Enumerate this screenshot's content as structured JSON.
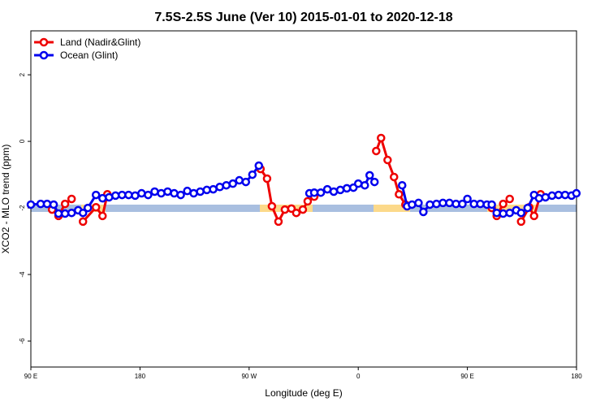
{
  "chart_data": {
    "type": "line",
    "title": "7.5S-2.5S June (Ver 10)   2015-01-01 to 2020-12-18",
    "x_label": "Longitude (deg E)",
    "y_label": "XCO2 - MLO trend (ppm)",
    "xlim": [
      90,
      540
    ],
    "xticks": [
      {
        "value": 90,
        "label": "90 E"
      },
      {
        "value": 180,
        "label": "180"
      },
      {
        "value": 270,
        "label": "90 W"
      },
      {
        "value": 360,
        "label": "0"
      },
      {
        "value": 450,
        "label": "90 E"
      },
      {
        "value": 540,
        "label": "180"
      }
    ],
    "ylim": [
      -6.78,
      3.32
    ],
    "yticks": [
      -6,
      -4,
      -2,
      0,
      2
    ],
    "legend": "top-left",
    "series": [
      {
        "name": "Land (Nadir&Glint)",
        "color": "#ee0000",
        "x": [
          107.5,
          112.8,
          118.2,
          123.6,
          null,
          133,
          143.7,
          149.1,
          153.1,
          null,
          279.4,
          284.8,
          288.8,
          294.2,
          299.5,
          304.9,
          308.9,
          314.3,
          318.3,
          323.7,
          null,
          374.8,
          378.8,
          384.2,
          389.5,
          393.6,
          398.9,
          null,
          470.1,
          474.2,
          479.5,
          484.9,
          null,
          494.3,
          501.0,
          505.0,
          510.4
        ],
        "values": [
          -2.05,
          -2.24,
          -1.88,
          -1.73,
          null,
          -2.41,
          -1.98,
          -2.24,
          -1.59,
          null,
          -0.83,
          -1.12,
          -1.95,
          -2.41,
          -2.05,
          -2.02,
          -2.15,
          -2.05,
          -1.8,
          -1.66,
          null,
          -0.29,
          0.1,
          -0.56,
          -1.07,
          -1.59,
          -1.9,
          null,
          -2.0,
          -2.24,
          -1.88,
          -1.73,
          null,
          -2.41,
          -1.98,
          -2.24,
          -1.59
        ]
      },
      {
        "name": "Ocean (Glint)",
        "color": "#0000ee",
        "x": [
          90,
          98.1,
          103.4,
          108.8,
          112.8,
          118.2,
          123.6,
          129,
          133,
          137,
          143.7,
          149.1,
          154.5,
          159.8,
          165.2,
          170.6,
          176,
          181.3,
          186.7,
          192.1,
          197.5,
          202.8,
          208.2,
          213.6,
          219,
          224.3,
          229.7,
          235.1,
          240.4,
          245.8,
          251.2,
          256.6,
          261.9,
          267.3,
          272.7,
          278,
          null,
          319.7,
          323.7,
          329.1,
          334.5,
          339.8,
          345.2,
          350.6,
          356,
          360,
          365.4,
          369.4,
          373.4,
          null,
          396.2,
          400.3,
          404.3,
          409.7,
          413.7,
          419.1,
          424.5,
          429.8,
          435.2,
          440.6,
          445.9,
          450,
          455.4,
          460.7,
          466.1,
          470.1,
          474.2,
          479.5,
          484.9,
          490.3,
          494.3,
          499.7,
          505,
          509.1,
          514.4,
          519.8,
          525.2,
          530.6,
          535.9,
          539.9
        ],
        "values": [
          -1.9,
          -1.88,
          -1.88,
          -1.9,
          -2.17,
          -2.17,
          -2.15,
          -2.07,
          -2.15,
          -2.0,
          -1.61,
          -1.71,
          -1.68,
          -1.63,
          -1.61,
          -1.61,
          -1.63,
          -1.56,
          -1.61,
          -1.51,
          -1.56,
          -1.51,
          -1.56,
          -1.61,
          -1.49,
          -1.56,
          -1.51,
          -1.46,
          -1.44,
          -1.37,
          -1.32,
          -1.27,
          -1.17,
          -1.22,
          -1.0,
          -0.73,
          null,
          -1.56,
          -1.54,
          -1.54,
          -1.44,
          -1.51,
          -1.46,
          -1.41,
          -1.39,
          -1.27,
          -1.32,
          -1.02,
          -1.22,
          null,
          -1.32,
          -1.95,
          -1.9,
          -1.85,
          -2.12,
          -1.9,
          -1.88,
          -1.85,
          -1.85,
          -1.88,
          -1.88,
          -1.73,
          -1.88,
          -1.88,
          -1.9,
          -1.9,
          -2.15,
          -2.17,
          -2.15,
          -2.07,
          -2.15,
          -2.0,
          -1.61,
          -1.71,
          -1.68,
          -1.63,
          -1.61,
          -1.61,
          -1.63,
          -1.56
        ]
      }
    ]
  }
}
